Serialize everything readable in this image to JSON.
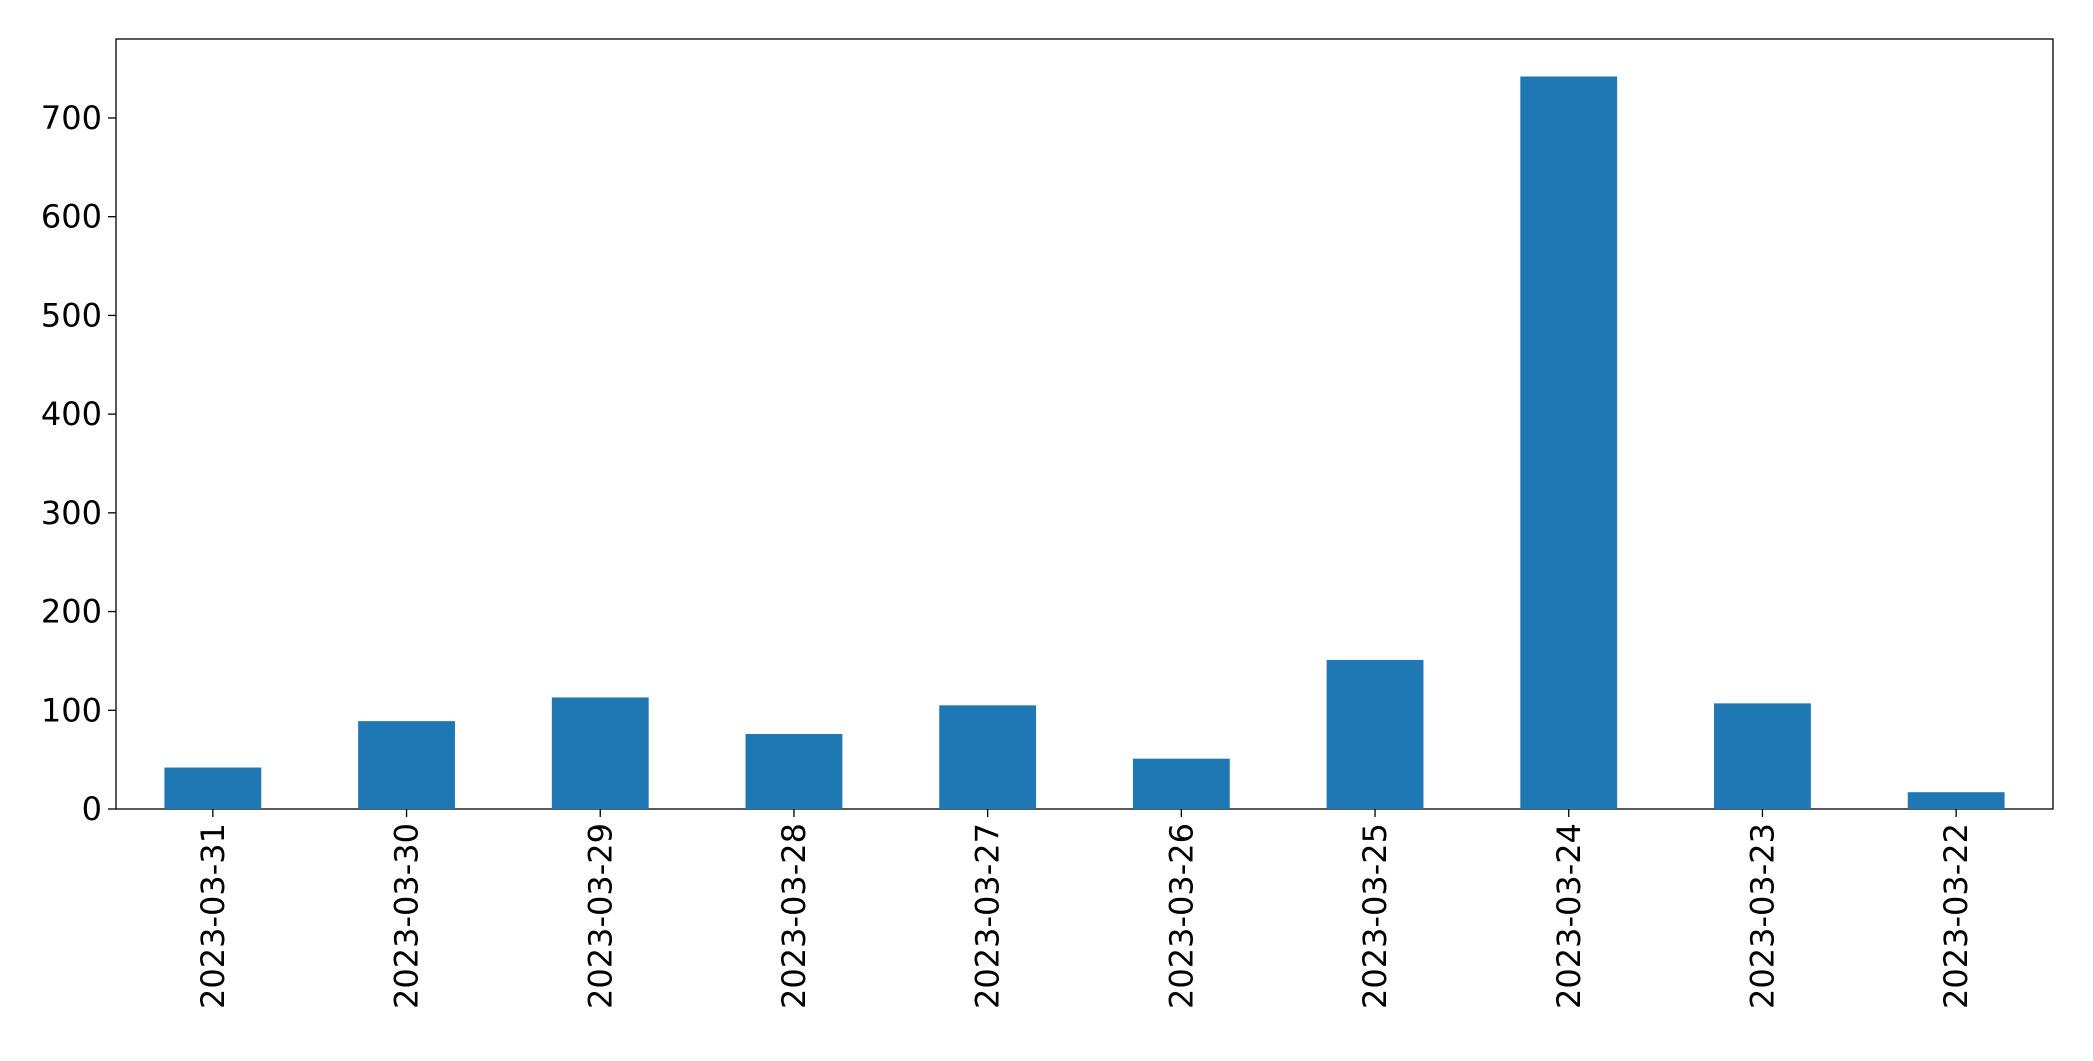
{
  "chart_data": {
    "type": "bar",
    "categories": [
      "2023-03-31",
      "2023-03-30",
      "2023-03-29",
      "2023-03-28",
      "2023-03-27",
      "2023-03-26",
      "2023-03-25",
      "2023-03-24",
      "2023-03-23",
      "2023-03-22"
    ],
    "values": [
      42,
      89,
      113,
      76,
      105,
      51,
      151,
      742,
      107,
      17
    ],
    "color": "#1f77b4",
    "ylim": [
      0,
      780
    ],
    "yticks": [
      0,
      100,
      200,
      300,
      400,
      500,
      600,
      700
    ],
    "grid": false
  }
}
